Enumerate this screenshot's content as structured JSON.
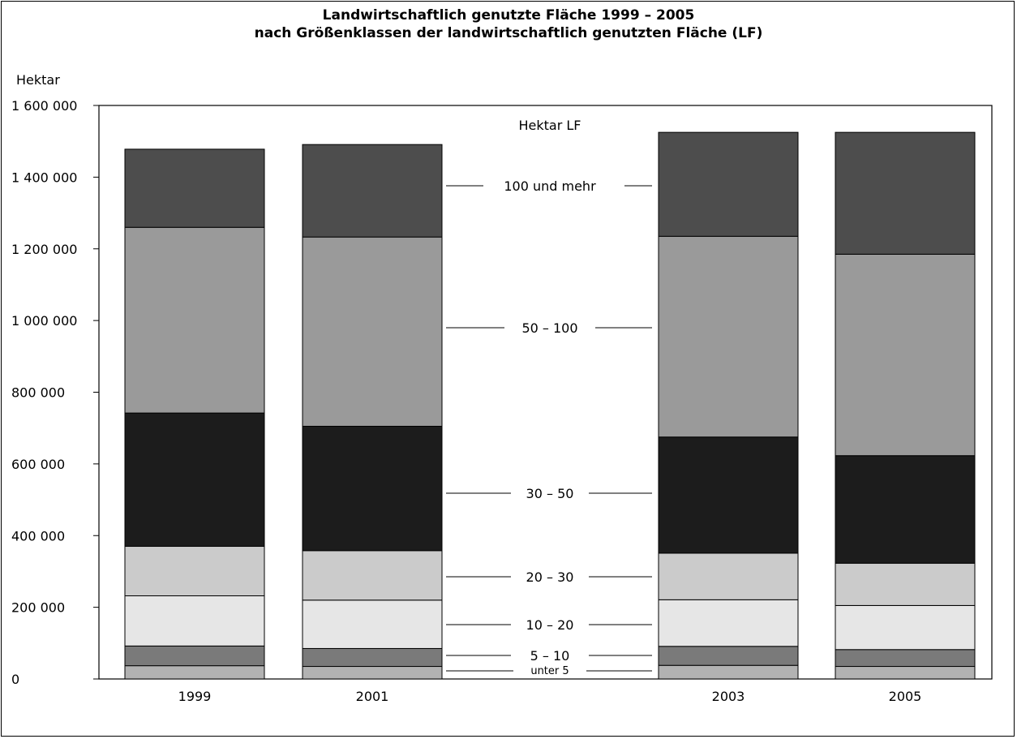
{
  "chart_data": {
    "type": "bar",
    "stacked": true,
    "title": "Landwirtschaftlich genutzte Fläche 1999 – 2005",
    "subtitle": "nach Größenklassen der landwirtschaftlich genutzten Fläche (LF)",
    "ylabel": "Hektar",
    "legend_title": "Hektar LF",
    "categories": [
      "1999",
      "2001",
      "2003",
      "2005"
    ],
    "ylim": [
      0,
      1600000
    ],
    "yticks": [
      0,
      200000,
      400000,
      600000,
      800000,
      1000000,
      1200000,
      1400000,
      1600000
    ],
    "ytick_labels": [
      "0",
      "200 000",
      "400 000",
      "600 000",
      "800 000",
      "1 000 000",
      "1 200 000",
      "1 400 000",
      "1 600 000"
    ],
    "series": [
      {
        "name": "unter 5",
        "color": "#b2b2b2",
        "values": [
          37000,
          35000,
          38000,
          35000
        ]
      },
      {
        "name": "5 – 10",
        "color": "#7a7a7a",
        "values": [
          55000,
          50000,
          53000,
          47000
        ]
      },
      {
        "name": "10 – 20",
        "color": "#e6e6e6",
        "values": [
          140000,
          135000,
          130000,
          123000
        ]
      },
      {
        "name": "20 – 30",
        "color": "#cbcbcb",
        "values": [
          138000,
          138000,
          130000,
          118000
        ]
      },
      {
        "name": "30 – 50",
        "color": "#1c1c1c",
        "values": [
          372000,
          347000,
          324000,
          300000
        ]
      },
      {
        "name": "50 – 100",
        "color": "#9a9a9a",
        "values": [
          518000,
          528000,
          560000,
          562000
        ]
      },
      {
        "name": "100 und mehr",
        "color": "#4d4d4d",
        "values": [
          218000,
          258000,
          290000,
          340000
        ]
      }
    ],
    "grid": false
  }
}
